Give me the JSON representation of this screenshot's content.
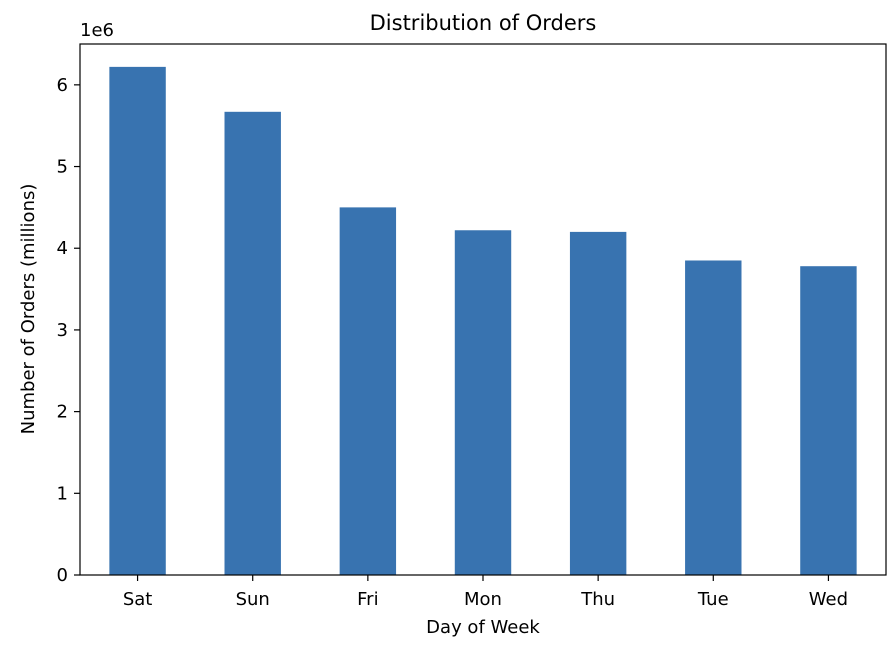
{
  "chart_data": {
    "type": "bar",
    "title": "Distribution of Orders",
    "xlabel": "Day of Week",
    "ylabel": "Number of Orders (millions)",
    "y_offset_label": "1e6",
    "categories": [
      "Sat",
      "Sun",
      "Fri",
      "Mon",
      "Thu",
      "Tue",
      "Wed"
    ],
    "values": [
      6220000,
      5670000,
      4500000,
      4220000,
      4200000,
      3850000,
      3780000
    ],
    "ylim": [
      0,
      6500000
    ],
    "yticks": [
      0,
      1000000,
      2000000,
      3000000,
      4000000,
      5000000,
      6000000
    ],
    "ytick_labels": [
      "0",
      "1",
      "2",
      "3",
      "4",
      "5",
      "6"
    ],
    "bar_color": "#3873b0",
    "grid": false,
    "legend": false
  }
}
